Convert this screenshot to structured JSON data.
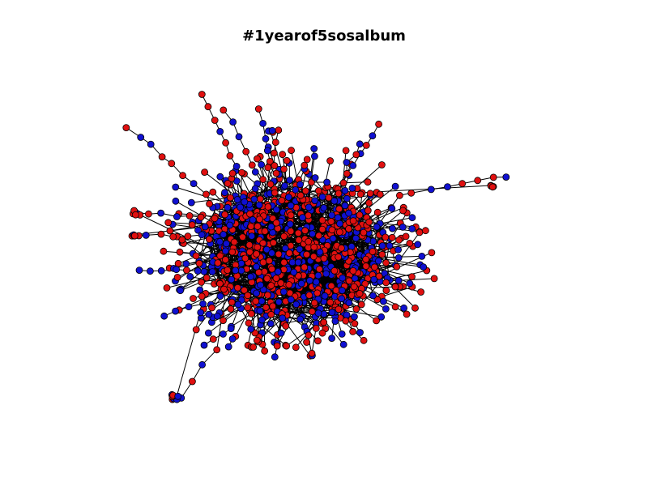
{
  "title": "#1yearof5sosalbum",
  "colors": {
    "node_red": "#e01010",
    "node_blue": "#1010d0",
    "edge": "#000000",
    "node_stroke": "#000000",
    "background": "#ffffff"
  },
  "graph": {
    "type": "force-directed network",
    "node_classes": [
      "red",
      "blue"
    ],
    "axes_visible": false
  }
}
